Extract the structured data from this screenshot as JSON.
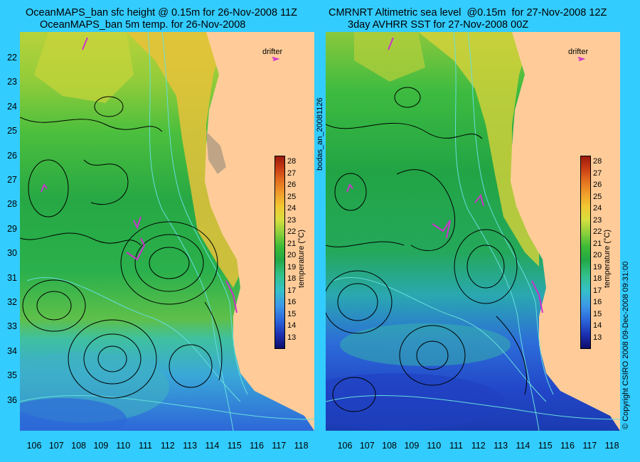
{
  "left_panel": {
    "title_line1": "OceanMAPS_ban sfc height @ 0.15m for 26-Nov-2008 11Z",
    "title_line2": "OceanMAPS_ban 5m temp. for 26-Nov-2008",
    "drifter_label": "drifter"
  },
  "right_panel": {
    "title_line1": "CMRNRT Altimetric sea level  @0.15m  for 27-Nov-2008 12Z",
    "title_line2": "3day AVHRR SST for 27-Nov-2008 00Z",
    "drifter_label": "drifter"
  },
  "side_labels": {
    "run_id": "bodas_an_20081126",
    "copyright": "© Copyright CSIRO 2008   09-Dec-2008 09:31:00"
  },
  "latitudes": [
    "22",
    "23",
    "24",
    "25",
    "26",
    "27",
    "28",
    "29",
    "30",
    "31",
    "32",
    "33",
    "34",
    "35",
    "36"
  ],
  "longitudes": [
    "106",
    "107",
    "108",
    "109",
    "110",
    "111",
    "112",
    "113",
    "114",
    "115",
    "116",
    "117",
    "118"
  ],
  "colorbar": {
    "label": "temperature (°C)",
    "ticks": [
      "28",
      "27",
      "26",
      "25",
      "24",
      "23",
      "22",
      "21",
      "20",
      "19",
      "18",
      "17",
      "16",
      "15",
      "14",
      "13"
    ]
  },
  "colors": {
    "background": "#33ccff",
    "land": "#ffcc99",
    "contour": "#000000",
    "bathymetry": "#66dddd",
    "drifter": "#cc33cc"
  }
}
